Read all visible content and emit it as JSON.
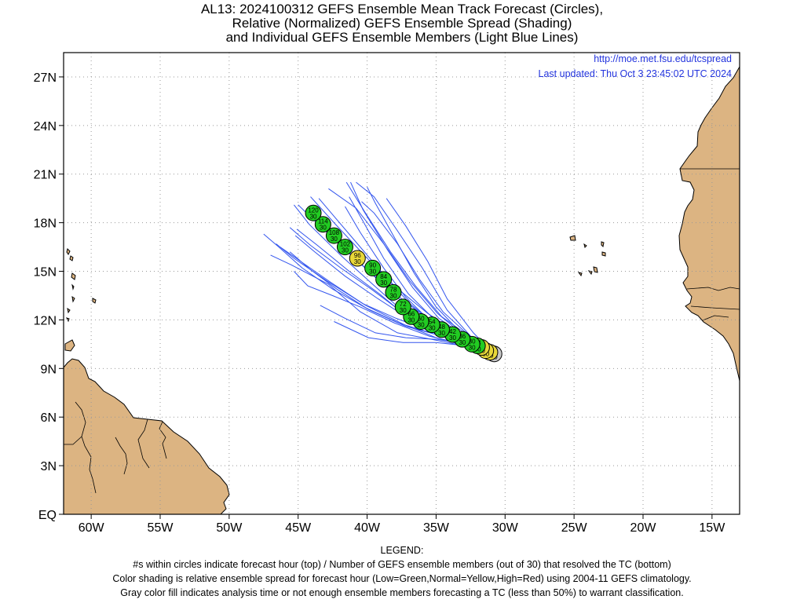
{
  "title": {
    "line1": "AL13: 2024100312 GEFS Ensemble Mean Track Forecast (Circles),",
    "line2": "Relative (Normalized) GEFS Ensemble Spread (Shading)",
    "line3": "and Individual GEFS Ensemble Members (Light Blue Lines)"
  },
  "source": {
    "url": "http://moe.met.fsu.edu/tcspread",
    "updated": "Last updated: Thu Oct 3 23:45:02 UTC 2024"
  },
  "legend": {
    "heading": "LEGEND:",
    "line1": "#s within circles indicate forecast hour (top) / Number of GEFS ensemble members (out of 30) that resolved the TC (bottom)",
    "line2": "Color shading is relative ensemble spread for forecast hour (Low=Green,Normal=Yellow,High=Red) using 2004-11 GEFS climatology.",
    "line3": "Gray color fill indicates analysis time or not enough ensemble members forecasting a TC (less than 50%) to warrant classification."
  },
  "axes": {
    "lon_range": [
      -62,
      -13
    ],
    "lat_range": [
      0,
      28.5
    ],
    "lat_ticks": [
      {
        "value": 0,
        "label": "EQ"
      },
      {
        "value": 3,
        "label": "3N"
      },
      {
        "value": 6,
        "label": "6N"
      },
      {
        "value": 9,
        "label": "9N"
      },
      {
        "value": 12,
        "label": "12N"
      },
      {
        "value": 15,
        "label": "15N"
      },
      {
        "value": 18,
        "label": "18N"
      },
      {
        "value": 21,
        "label": "21N"
      },
      {
        "value": 24,
        "label": "24N"
      },
      {
        "value": 27,
        "label": "27N"
      }
    ],
    "lon_ticks": [
      {
        "value": -60,
        "label": "60W"
      },
      {
        "value": -55,
        "label": "55W"
      },
      {
        "value": -50,
        "label": "50W"
      },
      {
        "value": -45,
        "label": "45W"
      },
      {
        "value": -40,
        "label": "40W"
      },
      {
        "value": -35,
        "label": "35W"
      },
      {
        "value": -30,
        "label": "30W"
      },
      {
        "value": -25,
        "label": "25W"
      },
      {
        "value": -20,
        "label": "20W"
      },
      {
        "value": -15,
        "label": "15W"
      }
    ],
    "grid": "dotted"
  },
  "colors": {
    "land": "#dcb482",
    "low_spread": "#22cc22",
    "normal_spread": "#e8d83a",
    "gray": "#c8c8c8",
    "member_lines": "#3355ee"
  },
  "mean_track": [
    {
      "hour": "0",
      "members": "30",
      "lon": -30.8,
      "lat": 9.9,
      "spread": "gray"
    },
    {
      "hour": "6",
      "members": "30",
      "lon": -31.1,
      "lat": 10.0,
      "spread": "normal"
    },
    {
      "hour": "12",
      "members": "30",
      "lon": -31.4,
      "lat": 10.1,
      "spread": "normal"
    },
    {
      "hour": "18",
      "members": "30",
      "lon": -31.7,
      "lat": 10.3,
      "spread": "normal"
    },
    {
      "hour": "24",
      "members": "30",
      "lon": -32.0,
      "lat": 10.4,
      "spread": "low"
    },
    {
      "hour": "30",
      "members": "30",
      "lon": -32.4,
      "lat": 10.5,
      "spread": "low"
    },
    {
      "hour": "36",
      "members": "30",
      "lon": -33.1,
      "lat": 10.8,
      "spread": "low"
    },
    {
      "hour": "42",
      "members": "30",
      "lon": -33.8,
      "lat": 11.1,
      "spread": "low"
    },
    {
      "hour": "48",
      "members": "30",
      "lon": -34.6,
      "lat": 11.4,
      "spread": "low"
    },
    {
      "hour": "54",
      "members": "30",
      "lon": -35.3,
      "lat": 11.7,
      "spread": "low"
    },
    {
      "hour": "60",
      "members": "30",
      "lon": -36.1,
      "lat": 11.9,
      "spread": "low"
    },
    {
      "hour": "66",
      "members": "30",
      "lon": -36.8,
      "lat": 12.2,
      "spread": "low"
    },
    {
      "hour": "72",
      "members": "30",
      "lon": -37.4,
      "lat": 12.8,
      "spread": "low"
    },
    {
      "hour": "78",
      "members": "30",
      "lon": -38.1,
      "lat": 13.7,
      "spread": "low"
    },
    {
      "hour": "84",
      "members": "30",
      "lon": -38.8,
      "lat": 14.5,
      "spread": "low"
    },
    {
      "hour": "90",
      "members": "30",
      "lon": -39.6,
      "lat": 15.2,
      "spread": "low"
    },
    {
      "hour": "96",
      "members": "30",
      "lon": -40.7,
      "lat": 15.8,
      "spread": "normal"
    },
    {
      "hour": "102",
      "members": "30",
      "lon": -41.6,
      "lat": 16.5,
      "spread": "low"
    },
    {
      "hour": "108",
      "members": "30",
      "lon": -42.4,
      "lat": 17.2,
      "spread": "low"
    },
    {
      "hour": "114",
      "members": "30",
      "lon": -43.2,
      "lat": 17.9,
      "spread": "low"
    },
    {
      "hour": "120",
      "members": "30",
      "lon": -43.9,
      "lat": 18.6,
      "spread": "low"
    }
  ],
  "members": [
    [
      [
        -30.8,
        9.9
      ],
      [
        -33,
        10.7
      ],
      [
        -35.2,
        11.5
      ],
      [
        -37.5,
        12.6
      ],
      [
        -39.6,
        14.2
      ],
      [
        -41.8,
        15.9
      ],
      [
        -44.2,
        17.9
      ],
      [
        -45.3,
        19.1
      ]
    ],
    [
      [
        -30.8,
        9.9
      ],
      [
        -33.2,
        11
      ],
      [
        -35.5,
        12
      ],
      [
        -37.8,
        13.5
      ],
      [
        -40,
        15.1
      ],
      [
        -42.3,
        17
      ],
      [
        -44.1,
        18.8
      ]
    ],
    [
      [
        -30.8,
        9.9
      ],
      [
        -33,
        10.8
      ],
      [
        -35.4,
        11.9
      ],
      [
        -37.2,
        13.4
      ],
      [
        -38.8,
        15.2
      ],
      [
        -40.5,
        17.4
      ],
      [
        -41.6,
        19
      ]
    ],
    [
      [
        -30.8,
        9.9
      ],
      [
        -33.2,
        11.2
      ],
      [
        -35,
        12.8
      ],
      [
        -36.6,
        14.9
      ],
      [
        -38.1,
        17.2
      ],
      [
        -39.4,
        19.2
      ],
      [
        -40,
        20.2
      ]
    ],
    [
      [
        -30.8,
        9.9
      ],
      [
        -32.5,
        11
      ],
      [
        -34.2,
        12.6
      ],
      [
        -36,
        15.2
      ],
      [
        -37.8,
        17.5
      ],
      [
        -39.5,
        19.6
      ],
      [
        -40.8,
        20.5
      ]
    ],
    [
      [
        -30.8,
        9.9
      ],
      [
        -32.8,
        10.6
      ],
      [
        -34.9,
        11.3
      ],
      [
        -37,
        12.1
      ],
      [
        -39.2,
        13.3
      ],
      [
        -41.6,
        14.7
      ],
      [
        -43.8,
        16.2
      ],
      [
        -45.2,
        17.2
      ]
    ],
    [
      [
        -30.8,
        9.9
      ],
      [
        -32.9,
        10.5
      ],
      [
        -35,
        11.1
      ],
      [
        -37.2,
        11.6
      ],
      [
        -39.8,
        12.6
      ],
      [
        -42.5,
        13.9
      ],
      [
        -44.7,
        15.2
      ],
      [
        -46.4,
        16.5
      ],
      [
        -47.5,
        17.3
      ]
    ],
    [
      [
        -30.8,
        9.9
      ],
      [
        -33,
        10.4
      ],
      [
        -35.3,
        10.8
      ],
      [
        -37.8,
        11.2
      ],
      [
        -40.5,
        12.5
      ],
      [
        -42.8,
        14.2
      ],
      [
        -45.5,
        15.4
      ],
      [
        -47,
        16
      ]
    ],
    [
      [
        -30.8,
        9.9
      ],
      [
        -33,
        10.5
      ],
      [
        -35.5,
        11
      ],
      [
        -38,
        11.8
      ],
      [
        -40.5,
        12.8
      ],
      [
        -42.5,
        13.5
      ],
      [
        -44.3,
        14.1
      ],
      [
        -45.3,
        15
      ]
    ],
    [
      [
        -30.8,
        9.9
      ],
      [
        -32.6,
        11
      ],
      [
        -34.6,
        12.2
      ],
      [
        -36.5,
        14.1
      ],
      [
        -38.3,
        16.2
      ],
      [
        -40.2,
        18.7
      ],
      [
        -41.5,
        20.5
      ]
    ],
    [
      [
        -30.8,
        9.9
      ],
      [
        -32.8,
        10.9
      ],
      [
        -34.9,
        12.4
      ],
      [
        -36.9,
        14.4
      ],
      [
        -38.8,
        16.7
      ],
      [
        -40.8,
        18.9
      ],
      [
        -42.8,
        20.1
      ]
    ],
    [
      [
        -30.8,
        9.9
      ],
      [
        -33.1,
        11
      ],
      [
        -35.6,
        12.4
      ],
      [
        -37.9,
        14
      ],
      [
        -40.1,
        15.9
      ],
      [
        -42.4,
        18
      ],
      [
        -44.1,
        19.6
      ]
    ],
    [
      [
        -30.8,
        9.9
      ],
      [
        -32.9,
        10.4
      ],
      [
        -35,
        10.9
      ],
      [
        -37.3,
        11.7
      ],
      [
        -40.1,
        12.9
      ],
      [
        -42.9,
        14.4
      ],
      [
        -45.3,
        15.8
      ],
      [
        -46.6,
        16.7
      ]
    ],
    [
      [
        -30.8,
        9.9
      ],
      [
        -32.9,
        10.8
      ],
      [
        -35,
        11.4
      ],
      [
        -37.1,
        12.2
      ],
      [
        -39.1,
        13.6
      ],
      [
        -41.3,
        15
      ],
      [
        -43.6,
        16.6
      ],
      [
        -45.1,
        17.6
      ]
    ],
    [
      [
        -30.8,
        9.9
      ],
      [
        -32.7,
        10.5
      ],
      [
        -34.9,
        10.8
      ],
      [
        -37.2,
        10.9
      ],
      [
        -39.4,
        11.2
      ],
      [
        -41.6,
        12.1
      ],
      [
        -43.4,
        12.9
      ]
    ],
    [
      [
        -30.8,
        9.9
      ],
      [
        -32.8,
        10.4
      ],
      [
        -35,
        10.6
      ],
      [
        -37.4,
        10.6
      ],
      [
        -39.9,
        10.9
      ],
      [
        -42.4,
        11.9
      ]
    ],
    [
      [
        -30.8,
        9.9
      ],
      [
        -32.3,
        11.2
      ],
      [
        -34.2,
        13.3
      ],
      [
        -35.6,
        15.6
      ],
      [
        -37.2,
        17.8
      ],
      [
        -38.6,
        19.5
      ]
    ],
    [
      [
        -30.8,
        9.9
      ],
      [
        -32.9,
        10.7
      ],
      [
        -35.1,
        11.6
      ],
      [
        -37.3,
        13
      ],
      [
        -39.5,
        14.7
      ],
      [
        -41.8,
        16.5
      ],
      [
        -43.9,
        18.2
      ],
      [
        -45,
        19.1
      ]
    ],
    [
      [
        -30.8,
        9.9
      ],
      [
        -33.1,
        10.6
      ],
      [
        -35.4,
        11.3
      ],
      [
        -37.9,
        12.1
      ],
      [
        -40.3,
        13
      ],
      [
        -42.6,
        14.3
      ],
      [
        -44.8,
        15.6
      ],
      [
        -46.3,
        16.5
      ]
    ],
    [
      [
        -30.8,
        9.9
      ],
      [
        -33,
        10.8
      ],
      [
        -35,
        11.7
      ],
      [
        -36.9,
        13
      ],
      [
        -38.7,
        14.7
      ],
      [
        -40.6,
        16.6
      ],
      [
        -42.4,
        18.4
      ],
      [
        -43.5,
        19.5
      ]
    ],
    [
      [
        -30.8,
        9.9
      ],
      [
        -33.1,
        10.9
      ],
      [
        -35.1,
        12
      ],
      [
        -37,
        13.6
      ],
      [
        -38.8,
        15.8
      ],
      [
        -40.3,
        18.1
      ],
      [
        -41.3,
        19.6
      ]
    ],
    [
      [
        -30.8,
        9.9
      ],
      [
        -33,
        10.6
      ],
      [
        -35.4,
        11.2
      ],
      [
        -37.7,
        11.8
      ],
      [
        -40,
        12.7
      ],
      [
        -42.2,
        13.9
      ],
      [
        -44.1,
        15.1
      ],
      [
        -45.6,
        16.2
      ]
    ],
    [
      [
        -30.8,
        9.9
      ],
      [
        -32.7,
        11.1
      ],
      [
        -34.5,
        12.5
      ],
      [
        -36.2,
        14.5
      ],
      [
        -37.8,
        16.7
      ],
      [
        -39.5,
        18.6
      ],
      [
        -40.4,
        19.3
      ]
    ],
    [
      [
        -30.8,
        9.9
      ],
      [
        -32.8,
        10.9
      ],
      [
        -34.8,
        12.1
      ],
      [
        -36.7,
        14
      ],
      [
        -38.5,
        16.3
      ],
      [
        -40.3,
        18.8
      ],
      [
        -41.2,
        20.5
      ]
    ],
    [
      [
        -30.8,
        9.9
      ],
      [
        -33,
        10.6
      ],
      [
        -35.2,
        11.4
      ],
      [
        -37.5,
        12.5
      ],
      [
        -39.7,
        13.9
      ],
      [
        -41.9,
        15.2
      ],
      [
        -44.1,
        16.6
      ],
      [
        -45.6,
        17.7
      ]
    ]
  ]
}
